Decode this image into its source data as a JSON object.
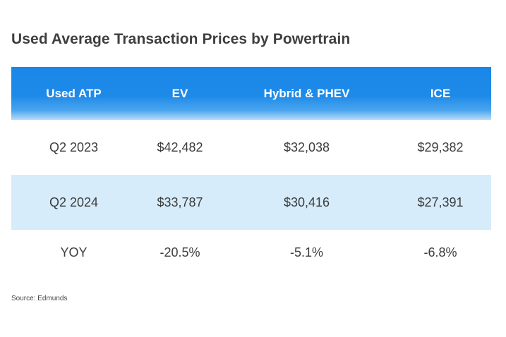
{
  "title": "Used Average Transaction Prices by Powertrain",
  "table": {
    "headers": [
      "Used ATP",
      "EV",
      "Hybrid & PHEV",
      "ICE"
    ],
    "rows": [
      [
        "Q2 2023",
        "$42,482",
        "$32,038",
        "$29,382"
      ],
      [
        "Q2 2024",
        "$33,787",
        "$30,416",
        "$27,391"
      ],
      [
        "YOY",
        "-20.5%",
        "-5.1%",
        "-6.8%"
      ]
    ]
  },
  "source": "Source: Edmunds",
  "colors": {
    "header_blue": "#1a86e8",
    "row_shade": "#d6ecfa",
    "header_text": "#ffffff",
    "body_text": "#3c3c3c"
  },
  "chart_data": {
    "type": "table",
    "title": "Used Average Transaction Prices by Powertrain",
    "columns": [
      "Used ATP",
      "EV",
      "Hybrid & PHEV",
      "ICE"
    ],
    "rows": [
      {
        "period": "Q2 2023",
        "EV": 42482,
        "Hybrid & PHEV": 32038,
        "ICE": 29382
      },
      {
        "period": "Q2 2024",
        "EV": 33787,
        "Hybrid & PHEV": 30416,
        "ICE": 27391
      },
      {
        "period": "YOY",
        "EV": -20.5,
        "Hybrid & PHEV": -5.1,
        "ICE": -6.8
      }
    ],
    "units": {
      "Q2 2023": "USD",
      "Q2 2024": "USD",
      "YOY": "percent"
    },
    "source": "Source: Edmunds"
  }
}
